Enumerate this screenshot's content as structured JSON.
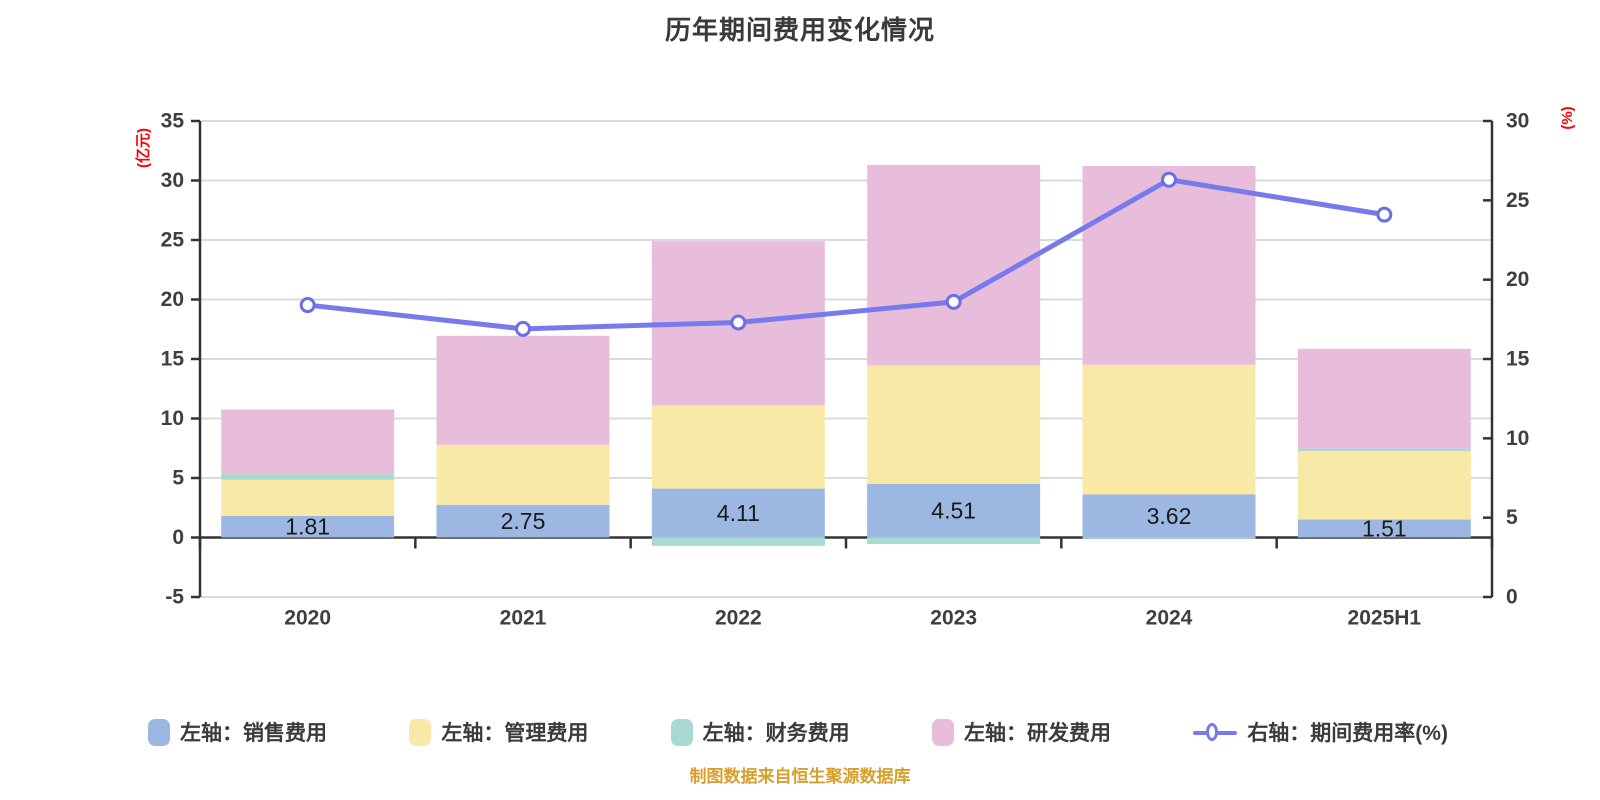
{
  "title": "历年期间费用变化情况",
  "footer": "制图数据来自恒生聚源数据库",
  "legend": {
    "items": [
      {
        "label": "左轴：销售费用",
        "color": "#9CB8E2",
        "type": "bar"
      },
      {
        "label": "左轴：管理费用",
        "color": "#F9E9A6",
        "type": "bar"
      },
      {
        "label": "左轴：财务费用",
        "color": "#A6DAD2",
        "type": "bar"
      },
      {
        "label": "左轴：研发费用",
        "color": "#E8BDDC",
        "type": "bar"
      },
      {
        "label": "右轴：期间费用率(%)",
        "color": "#777AEA",
        "type": "line"
      }
    ]
  },
  "chart_data": {
    "type": "bar",
    "subtype": "stacked-bars-with-line-dual-axis",
    "categories": [
      "2020",
      "2021",
      "2022",
      "2023",
      "2024",
      "2025H1"
    ],
    "series": [
      {
        "name": "左轴：销售费用",
        "axis": "left",
        "stack": "total",
        "color": "#9CB8E2",
        "values": [
          1.81,
          2.75,
          4.11,
          4.51,
          3.62,
          1.51
        ]
      },
      {
        "name": "左轴：管理费用",
        "axis": "left",
        "stack": "total",
        "color": "#F9E9A6",
        "values": [
          3.05,
          5.05,
          7.0,
          9.95,
          10.9,
          5.75
        ]
      },
      {
        "name": "左轴：财务费用",
        "axis": "left",
        "stack": "total",
        "color": "#A6DAD2",
        "values": [
          0.45,
          0.0,
          -0.7,
          -0.55,
          -0.1,
          0.2
        ]
      },
      {
        "name": "左轴：研发费用",
        "axis": "left",
        "stack": "total",
        "color": "#E8BDDC",
        "values": [
          5.45,
          9.15,
          13.8,
          16.85,
          16.7,
          8.4
        ]
      }
    ],
    "line_series": {
      "name": "右轴：期间费用率(%)",
      "axis": "right",
      "color": "#777AEA",
      "marker_fill": "#FFFFFF",
      "marker_stroke": "#6B6FE6",
      "values": [
        18.4,
        16.9,
        17.3,
        18.6,
        26.3,
        24.1
      ]
    },
    "bar_labels": [
      "1.81",
      "2.75",
      "4.11",
      "4.51",
      "3.62",
      "1.51"
    ],
    "left_axis": {
      "label": "(亿元)",
      "min": -5,
      "max": 35,
      "ticks": [
        35,
        30,
        25,
        20,
        15,
        10,
        5,
        0,
        -5
      ],
      "label_color": "#FF0000"
    },
    "right_axis": {
      "label": "(%)",
      "min": 0,
      "max": 30,
      "ticks": [
        30,
        25,
        20,
        15,
        10,
        5,
        0
      ],
      "label_color": "#FF0000"
    },
    "grid": true,
    "legend_position": "bottom",
    "colors": {
      "axis_line": "#333333",
      "grid_line": "#DBDBDB",
      "tick_label": "#3f3f3f",
      "bar_label": "#1a1a1a",
      "title": "#3a3a3a"
    }
  }
}
